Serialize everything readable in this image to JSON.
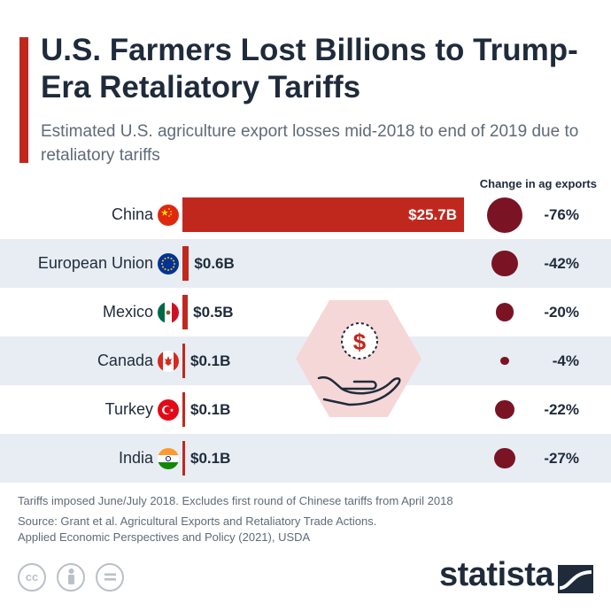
{
  "title": "U.S. Farmers Lost Billions to Trump-Era Retaliatory Tariffs",
  "subtitle": "Estimated U.S. agriculture export losses mid-2018 to end of 2019 due to retaliatory tariffs",
  "column_header": "Change in ag exports",
  "chart_data": {
    "type": "bar",
    "orientation": "horizontal",
    "title": "U.S. Farmers Lost Billions to Trump-Era Retaliatory Tariffs",
    "subtitle": "Estimated U.S. agriculture export losses mid-2018 to end of 2019 due to retaliatory tariffs",
    "categories": [
      "China",
      "European Union",
      "Mexico",
      "Canada",
      "Turkey",
      "India"
    ],
    "values": [
      25.7,
      0.6,
      0.5,
      0.1,
      0.1,
      0.1
    ],
    "value_labels": [
      "$25.7B",
      "$0.6B",
      "$0.5B",
      "$0.1B",
      "$0.1B",
      "$0.1B"
    ],
    "secondary_series_label": "Change in ag exports",
    "secondary_values": [
      -76,
      -42,
      -20,
      -4,
      -22,
      -27
    ],
    "secondary_labels": [
      "-76%",
      "-42%",
      "-20%",
      "-4%",
      "-22%",
      "-27%"
    ],
    "bar_color": "#c0281e",
    "bubble_color": "#7a1424",
    "grid": false
  },
  "flags": [
    "china-flag-icon",
    "eu-flag-icon",
    "mexico-flag-icon",
    "canada-flag-icon",
    "turkey-flag-icon",
    "india-flag-icon"
  ],
  "illustration": "dollar-coin-in-hand-icon",
  "footnotes": {
    "note": "Tariffs imposed June/July 2018. Excludes first round of Chinese tariffs from April 2018",
    "source_line1": "Source: Grant et al. Agricultural Exports and Retaliatory Trade Actions.",
    "source_line2": "Applied Economic Perspectives and Policy (2021), USDA"
  },
  "brand": "statista",
  "colors": {
    "accent": "#c0281e",
    "text": "#1f2b3b",
    "muted": "#5f6b78",
    "shade": "#e8edf3"
  }
}
